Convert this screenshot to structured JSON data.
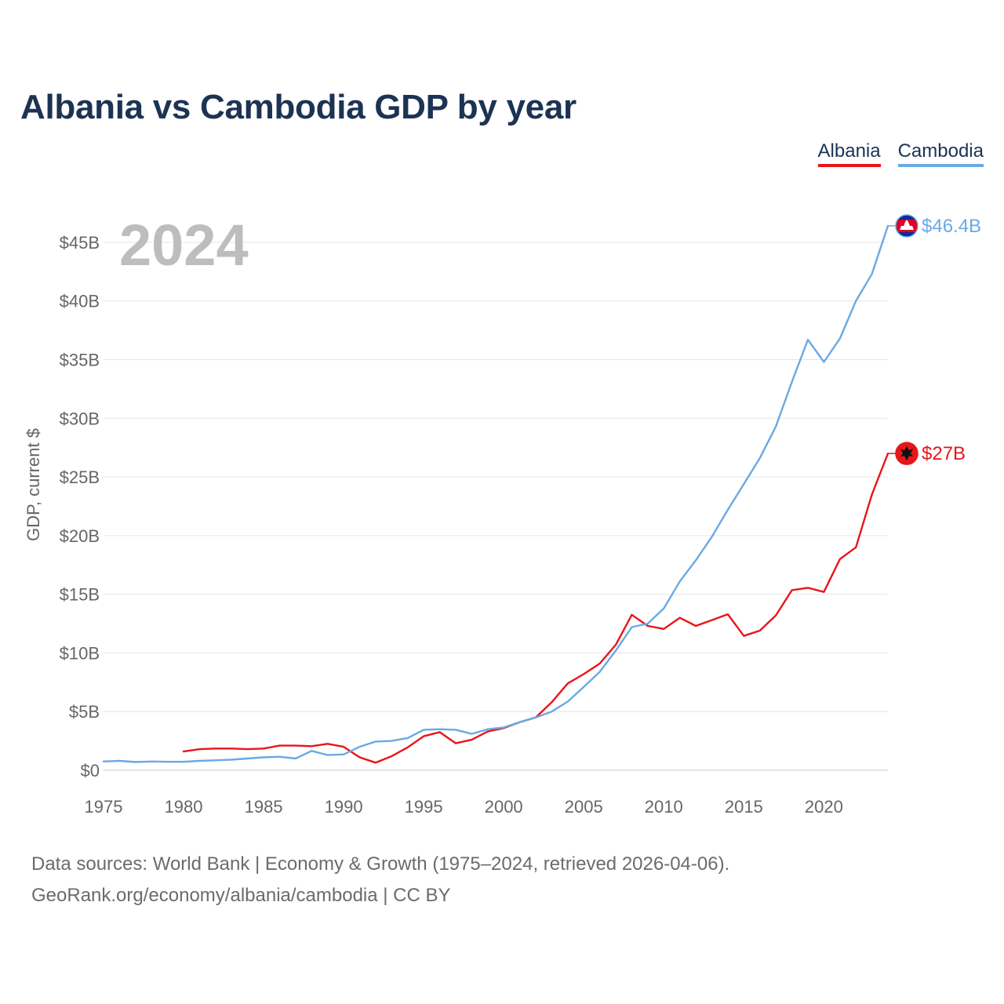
{
  "chart_data": {
    "type": "line",
    "title": "Albania vs Cambodia GDP by year",
    "ylabel": "GDP, current $",
    "xlabel": "",
    "year_marker": "2024",
    "ylim": [
      0,
      46.4
    ],
    "xlim": [
      1975,
      2024
    ],
    "y_ticks": [
      {
        "value": 0,
        "label": "$0"
      },
      {
        "value": 5,
        "label": "$5B"
      },
      {
        "value": 10,
        "label": "$10B"
      },
      {
        "value": 15,
        "label": "$15B"
      },
      {
        "value": 20,
        "label": "$20B"
      },
      {
        "value": 25,
        "label": "$25B"
      },
      {
        "value": 30,
        "label": "$30B"
      },
      {
        "value": 35,
        "label": "$35B"
      },
      {
        "value": 40,
        "label": "$40B"
      },
      {
        "value": 45,
        "label": "$45B"
      }
    ],
    "x_ticks": [
      {
        "value": 1975,
        "label": "1975"
      },
      {
        "value": 1980,
        "label": "1980"
      },
      {
        "value": 1985,
        "label": "1985"
      },
      {
        "value": 1990,
        "label": "1990"
      },
      {
        "value": 1995,
        "label": "1995"
      },
      {
        "value": 2000,
        "label": "2000"
      },
      {
        "value": 2005,
        "label": "2005"
      },
      {
        "value": 2010,
        "label": "2010"
      },
      {
        "value": 2015,
        "label": "2015"
      },
      {
        "value": 2020,
        "label": "2020"
      }
    ],
    "series": [
      {
        "name": "Albania",
        "color": "#e8151b",
        "end_label": "$27B",
        "flag_icon": "albania-flag-icon",
        "x": [
          1980,
          1981,
          1982,
          1983,
          1984,
          1985,
          1986,
          1987,
          1988,
          1989,
          1990,
          1991,
          1992,
          1993,
          1994,
          1995,
          1996,
          1997,
          1998,
          1999,
          2000,
          2001,
          2002,
          2003,
          2004,
          2005,
          2006,
          2007,
          2008,
          2009,
          2010,
          2011,
          2012,
          2013,
          2014,
          2015,
          2016,
          2017,
          2018,
          2019,
          2020,
          2021,
          2022,
          2023,
          2024
        ],
        "values": [
          1.6,
          1.8,
          1.85,
          1.85,
          1.8,
          1.85,
          2.1,
          2.1,
          2.05,
          2.25,
          2.0,
          1.1,
          0.65,
          1.2,
          1.95,
          2.9,
          3.25,
          2.3,
          2.6,
          3.3,
          3.6,
          4.1,
          4.5,
          5.8,
          7.4,
          8.2,
          9.1,
          10.7,
          13.25,
          12.3,
          12.05,
          13.0,
          12.3,
          12.8,
          13.3,
          11.45,
          11.9,
          13.2,
          15.35,
          15.55,
          15.2,
          18.0,
          19.0,
          23.5,
          27.0
        ]
      },
      {
        "name": "Cambodia",
        "color": "#6aa9e4",
        "end_label": "$46.4B",
        "flag_icon": "cambodia-flag-icon",
        "x": [
          1975,
          1976,
          1977,
          1978,
          1979,
          1980,
          1981,
          1982,
          1983,
          1984,
          1985,
          1986,
          1987,
          1988,
          1989,
          1990,
          1991,
          1992,
          1993,
          1994,
          1995,
          1996,
          1997,
          1998,
          1999,
          2000,
          2001,
          2002,
          2003,
          2004,
          2005,
          2006,
          2007,
          2008,
          2009,
          2010,
          2011,
          2012,
          2013,
          2014,
          2015,
          2016,
          2017,
          2018,
          2019,
          2020,
          2021,
          2022,
          2023,
          2024
        ],
        "values": [
          0.75,
          0.8,
          0.7,
          0.75,
          0.72,
          0.72,
          0.8,
          0.85,
          0.9,
          1.0,
          1.1,
          1.15,
          1.0,
          1.65,
          1.3,
          1.35,
          2.0,
          2.45,
          2.5,
          2.75,
          3.45,
          3.5,
          3.45,
          3.1,
          3.5,
          3.65,
          4.1,
          4.5,
          5.0,
          5.85,
          7.1,
          8.4,
          10.2,
          12.2,
          12.5,
          13.8,
          16.1,
          17.9,
          19.9,
          22.2,
          24.4,
          26.6,
          29.3,
          33.1,
          36.7,
          34.8,
          36.8,
          40.0,
          42.3,
          46.4
        ]
      }
    ],
    "legend": [
      "Albania",
      "Cambodia"
    ]
  },
  "footer": {
    "sources": "Data sources: World Bank | Economy & Growth (1975–2024, retrieved 2026-04-06).",
    "attribution": "GeoRank.org/economy/albania/cambodia | CC BY"
  }
}
